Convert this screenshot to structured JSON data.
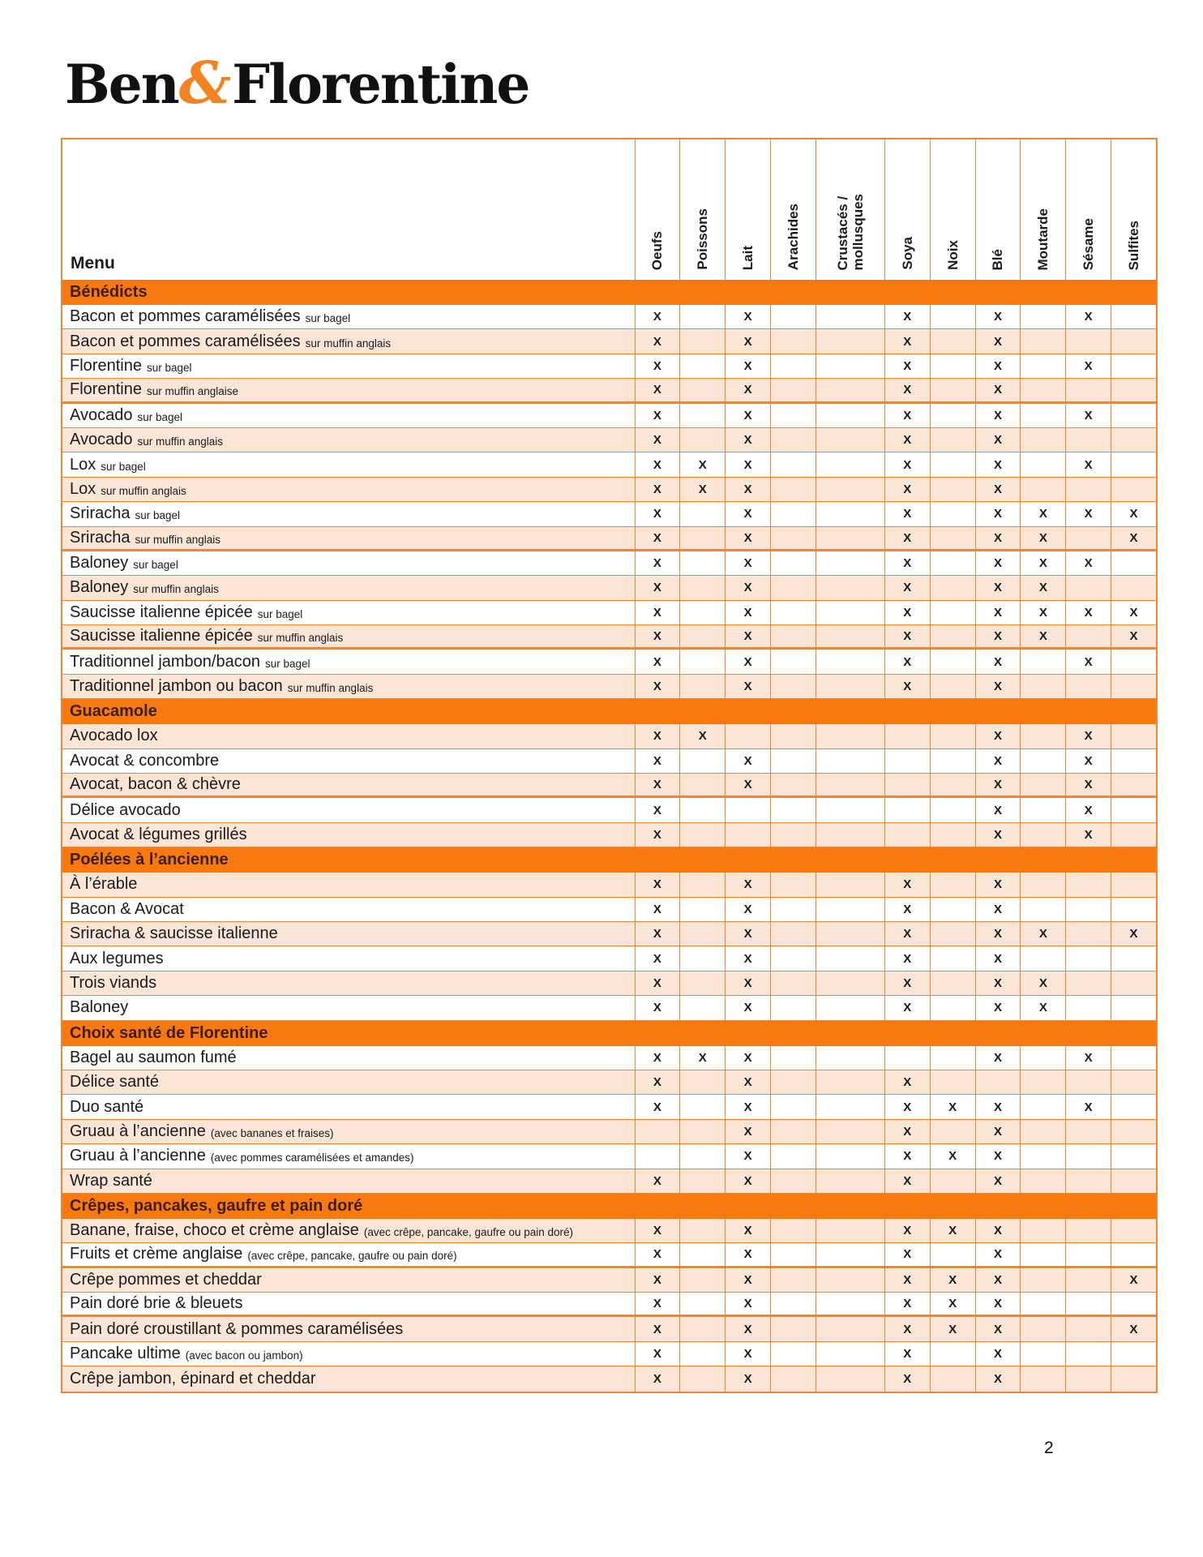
{
  "logo": {
    "part1": "Ben",
    "amp": "&",
    "part2": "Florentine"
  },
  "page_number": "2",
  "colors": {
    "section_bar": "#F8790F",
    "shaded_row": "#FBE5D6",
    "grid_line": "#EE8637",
    "section_text": "#3F1E00",
    "logo_ampersand": "#F58220"
  },
  "table": {
    "menu_header": "Menu",
    "columns": [
      {
        "label": "Oeufs"
      },
      {
        "label": "Poissons"
      },
      {
        "label": "Lait"
      },
      {
        "label": "Arachides"
      },
      {
        "label": "Crustacés /\nmollusques",
        "wide": true
      },
      {
        "label": "Soya"
      },
      {
        "label": "Noix"
      },
      {
        "label": "Blé"
      },
      {
        "label": "Moutarde"
      },
      {
        "label": "Sésame"
      },
      {
        "label": "Sulfites"
      }
    ],
    "mark": "X",
    "sections": [
      {
        "title": "Bénédicts",
        "rows": [
          {
            "name": "Bacon et pommes caramélisées",
            "suffix": "sur bagel",
            "shade": false,
            "marks": [
              0,
              2,
              5,
              7,
              9
            ]
          },
          {
            "name": "Bacon et pommes caramélisées",
            "suffix": "sur muffin anglais",
            "shade": true,
            "marks": [
              0,
              2,
              5,
              7
            ]
          },
          {
            "name": "Florentine",
            "suffix": "sur bagel",
            "shade": false,
            "marks": [
              0,
              2,
              5,
              7,
              9
            ]
          },
          {
            "name": "Florentine",
            "suffix": "sur muffin anglaise",
            "shade": true,
            "sep": true,
            "marks": [
              0,
              2,
              5,
              7
            ]
          },
          {
            "name": "Avocado",
            "suffix": "sur bagel",
            "shade": false,
            "marks": [
              0,
              2,
              5,
              7,
              9
            ]
          },
          {
            "name": "Avocado",
            "suffix": "sur muffin anglais",
            "shade": true,
            "marks": [
              0,
              2,
              5,
              7
            ]
          },
          {
            "name": "Lox",
            "suffix": "sur bagel",
            "shade": false,
            "marks": [
              0,
              1,
              2,
              5,
              7,
              9
            ]
          },
          {
            "name": "Lox",
            "suffix": "sur muffin anglais",
            "shade": true,
            "marks": [
              0,
              1,
              2,
              5,
              7
            ]
          },
          {
            "name": "Sriracha",
            "suffix": "sur bagel",
            "shade": false,
            "marks": [
              0,
              2,
              5,
              7,
              8,
              9,
              10
            ]
          },
          {
            "name": "Sriracha",
            "suffix": "sur muffin anglais",
            "shade": true,
            "sep": true,
            "marks": [
              0,
              2,
              5,
              7,
              8,
              10
            ]
          },
          {
            "name": "Baloney",
            "suffix": "sur bagel",
            "shade": false,
            "marks": [
              0,
              2,
              5,
              7,
              8,
              9
            ]
          },
          {
            "name": "Baloney",
            "suffix": "sur muffin anglais",
            "shade": true,
            "marks": [
              0,
              2,
              5,
              7,
              8
            ]
          },
          {
            "name": "Saucisse italienne épicée",
            "suffix": "sur bagel",
            "shade": false,
            "marks": [
              0,
              2,
              5,
              7,
              8,
              9,
              10
            ]
          },
          {
            "name": "Saucisse italienne épicée",
            "suffix": "sur muffin anglais",
            "shade": true,
            "sep": true,
            "marks": [
              0,
              2,
              5,
              7,
              8,
              10
            ]
          },
          {
            "name": "Traditionnel jambon/bacon",
            "suffix": "sur bagel",
            "shade": false,
            "marks": [
              0,
              2,
              5,
              7,
              9
            ]
          },
          {
            "name": "Traditionnel jambon ou bacon",
            "suffix": "sur muffin anglais",
            "shade": true,
            "marks": [
              0,
              2,
              5,
              7
            ]
          }
        ]
      },
      {
        "title": "Guacamole",
        "rows": [
          {
            "name": "Avocado lox",
            "suffix": "",
            "shade": true,
            "marks": [
              0,
              1,
              7,
              9
            ]
          },
          {
            "name": "Avocat & concombre",
            "suffix": "",
            "shade": false,
            "marks": [
              0,
              2,
              7,
              9
            ]
          },
          {
            "name": "Avocat, bacon & chèvre",
            "suffix": "",
            "shade": true,
            "sep": true,
            "marks": [
              0,
              2,
              7,
              9
            ]
          },
          {
            "name": "Délice avocado",
            "suffix": "",
            "shade": false,
            "marks": [
              0,
              7,
              9
            ]
          },
          {
            "name": "Avocat & légumes grillés",
            "suffix": "",
            "shade": true,
            "marks": [
              0,
              7,
              9
            ]
          }
        ]
      },
      {
        "title": "Poélées à l’ancienne",
        "rows": [
          {
            "name": "À l’érable",
            "suffix": "",
            "shade": true,
            "marks": [
              0,
              2,
              5,
              7
            ]
          },
          {
            "name": "Bacon & Avocat",
            "suffix": "",
            "shade": false,
            "marks": [
              0,
              2,
              5,
              7
            ]
          },
          {
            "name": "Sriracha & saucisse italienne",
            "suffix": "",
            "shade": true,
            "marks": [
              0,
              2,
              5,
              7,
              8,
              10
            ]
          },
          {
            "name": "Aux legumes",
            "suffix": "",
            "shade": false,
            "marks": [
              0,
              2,
              5,
              7
            ]
          },
          {
            "name": "Trois viands",
            "suffix": "",
            "shade": true,
            "marks": [
              0,
              2,
              5,
              7,
              8
            ]
          },
          {
            "name": "Baloney",
            "suffix": "",
            "shade": false,
            "marks": [
              0,
              2,
              5,
              7,
              8
            ]
          }
        ]
      },
      {
        "title": "Choix santé de Florentine",
        "rows": [
          {
            "name": "Bagel au saumon fumé",
            "suffix": "",
            "shade": false,
            "marks": [
              0,
              1,
              2,
              7,
              9
            ]
          },
          {
            "name": "Délice santé",
            "suffix": "",
            "shade": true,
            "marks": [
              0,
              2,
              5
            ]
          },
          {
            "name": "Duo santé",
            "suffix": "",
            "shade": false,
            "marks": [
              0,
              2,
              5,
              6,
              7,
              9
            ]
          },
          {
            "name": "Gruau à l’ancienne",
            "suffix": "(avec bananes et fraises)",
            "shade": true,
            "marks": [
              2,
              5,
              7
            ]
          },
          {
            "name": "Gruau à l’ancienne",
            "suffix": "(avec pommes caramélisées et amandes)",
            "shade": false,
            "marks": [
              2,
              5,
              6,
              7
            ]
          },
          {
            "name": "Wrap santé",
            "suffix": "",
            "shade": true,
            "marks": [
              0,
              2,
              5,
              7
            ]
          }
        ]
      },
      {
        "title": "Crêpes, pancakes, gaufre et pain doré",
        "rows": [
          {
            "name": "Banane, fraise, choco et crème anglaise",
            "suffix": "(avec crêpe, pancake, gaufre ou pain doré)",
            "shade": true,
            "marks": [
              0,
              2,
              5,
              6,
              7
            ]
          },
          {
            "name": "Fruits et crème anglaise",
            "suffix": "(avec crêpe, pancake, gaufre ou pain doré)",
            "shade": false,
            "sep": true,
            "marks": [
              0,
              2,
              5,
              7
            ]
          },
          {
            "name": "Crêpe pommes et cheddar",
            "suffix": "",
            "shade": true,
            "marks": [
              0,
              2,
              5,
              6,
              7,
              10
            ]
          },
          {
            "name": "Pain doré brie & bleuets",
            "suffix": "",
            "shade": false,
            "sep": true,
            "marks": [
              0,
              2,
              5,
              6,
              7
            ]
          },
          {
            "name": "Pain doré croustillant & pommes caramélisées",
            "suffix": "",
            "shade": true,
            "marks": [
              0,
              2,
              5,
              6,
              7,
              10
            ]
          },
          {
            "name": "Pancake ultime",
            "suffix": "(avec bacon ou jambon)",
            "shade": false,
            "marks": [
              0,
              2,
              5,
              7
            ]
          },
          {
            "name": "Crêpe jambon, épinard et cheddar",
            "suffix": "",
            "shade": true,
            "marks": [
              0,
              2,
              5,
              7
            ]
          }
        ]
      }
    ]
  }
}
